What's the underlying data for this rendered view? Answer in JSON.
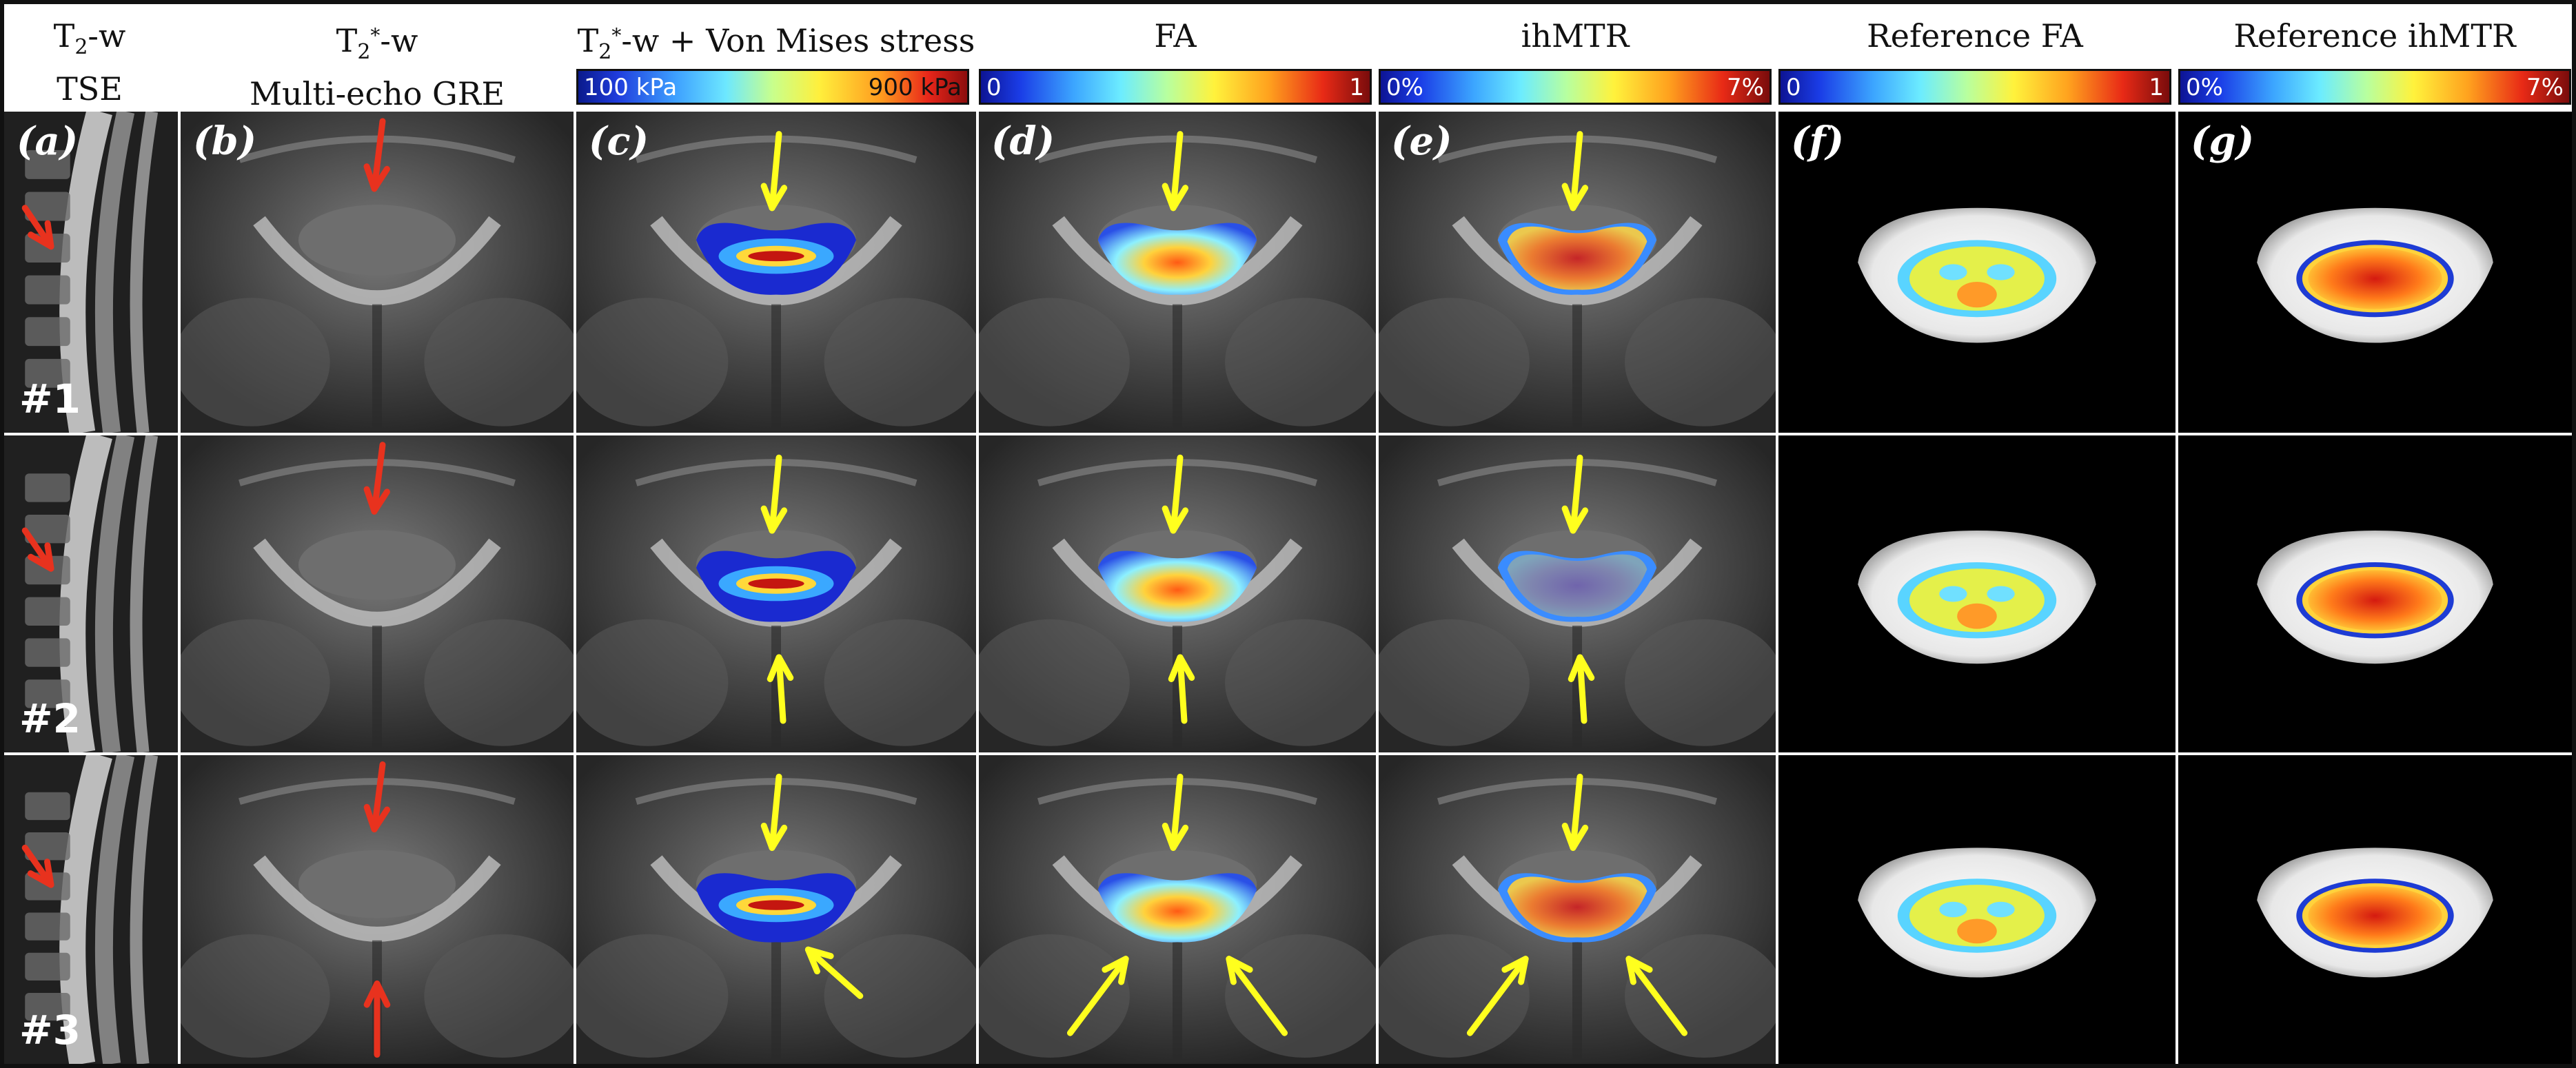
{
  "headers": {
    "col_a": {
      "line1_prefix": "T",
      "line1_sub": "2",
      "line1_suffix": "-w",
      "line2": "TSE"
    },
    "col_b": {
      "line1_prefix": "T",
      "line1_sub": "2",
      "line1_sup": "*",
      "line1_suffix": "-w",
      "line2": "Multi-echo  GRE"
    },
    "col_c": {
      "prefix": "T",
      "sub": "2",
      "sup": "*",
      "suffix": "-w + Von Mises stress"
    },
    "col_d": "FA",
    "col_e": "ihMTR",
    "col_f": "Reference FA",
    "col_g": "Reference ihMTR"
  },
  "colorbars": {
    "stress": {
      "low": "100 kPa",
      "high": "900 kPa"
    },
    "fa": {
      "low": "0",
      "high": "1"
    },
    "ihmtr": {
      "low": "0%",
      "high": "7%"
    },
    "ref_fa": {
      "low": "0",
      "high": "1"
    },
    "ref_ihmtr": {
      "low": "0%",
      "high": "7%"
    }
  },
  "panel_labels": {
    "a": "(a)",
    "b": "(b)",
    "c": "(c)",
    "d": "(d)",
    "e": "(e)",
    "f": "(f)",
    "g": "(g)"
  },
  "cases": [
    "#1",
    "#2",
    "#3"
  ],
  "colors": {
    "red_arrow": "#e8321e",
    "yellow_arrow": "#ffff1e",
    "background": "#ffffff",
    "scan_gray": "#3a3a3a"
  }
}
